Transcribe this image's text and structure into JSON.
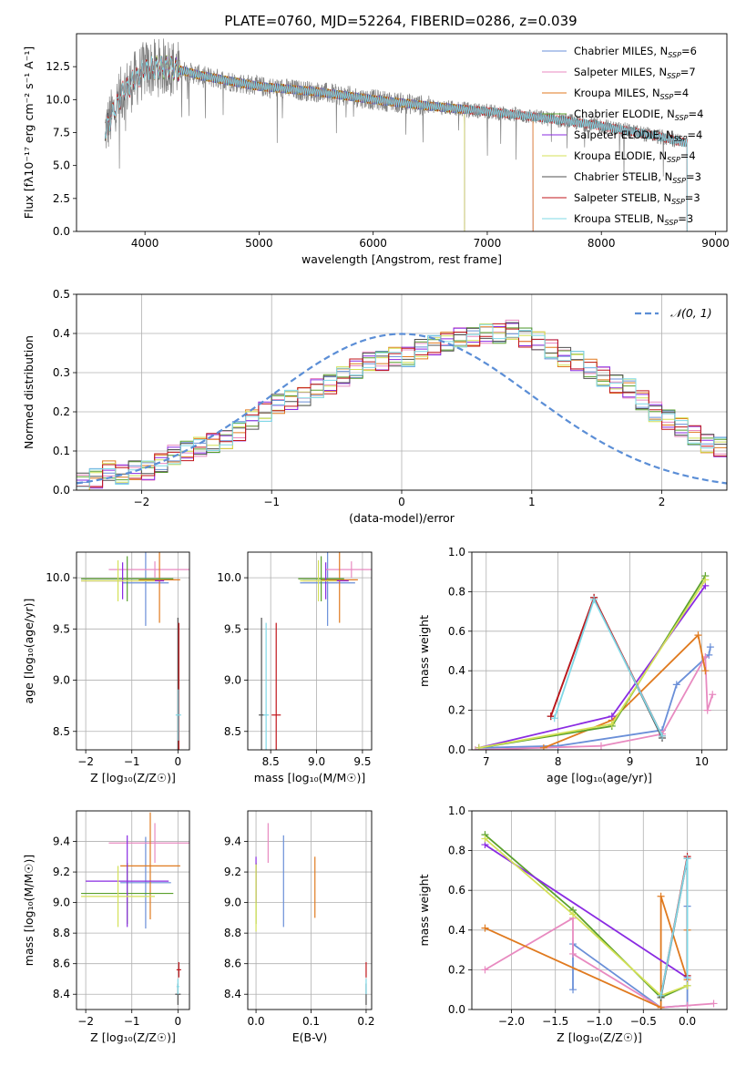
{
  "figure": {
    "title": "PLATE=0760, MJD=52264, FIBERID=0286, z=0.039"
  },
  "models": [
    {
      "name": "Chabrier MILES",
      "nssp": "6",
      "color": "#6a8fd8"
    },
    {
      "name": "Salpeter MILES",
      "nssp": "7",
      "color": "#e88ac0"
    },
    {
      "name": "Kroupa MILES",
      "nssp": "4",
      "color": "#e07a1f"
    },
    {
      "name": "Chabrier ELODIE",
      "nssp": "4",
      "color": "#5aa02c"
    },
    {
      "name": "Salpeter ELODIE",
      "nssp": "4",
      "color": "#8a2be2"
    },
    {
      "name": "Kroupa ELODIE",
      "nssp": "4",
      "color": "#d4e157"
    },
    {
      "name": "Chabrier STELIB",
      "nssp": "3",
      "color": "#505050"
    },
    {
      "name": "Salpeter STELIB",
      "nssp": "3",
      "color": "#c0161b"
    },
    {
      "name": "Kroupa STELIB",
      "nssp": "3",
      "color": "#7fd8e6"
    }
  ],
  "chart_data": [
    {
      "id": "spectrum",
      "type": "line",
      "xlabel": "wavelength [Angstrom, rest frame]",
      "ylabel": "Flux [fλ10⁻¹⁷ erg cm⁻² s⁻¹ A⁻¹]",
      "xlim": [
        3400,
        9100
      ],
      "ylim": [
        0,
        15
      ],
      "xticks": [
        4000,
        5000,
        6000,
        7000,
        8000,
        9000
      ],
      "yticks": [
        0.0,
        2.5,
        5.0,
        7.5,
        10.0,
        12.5
      ],
      "data_series_color": "#808080",
      "data_wavelength_range": [
        3650,
        8700
      ],
      "model_continuum": [
        {
          "x": 3650,
          "y": 7.6
        },
        {
          "x": 3800,
          "y": 10.5
        },
        {
          "x": 4000,
          "y": 12.3
        },
        {
          "x": 4200,
          "y": 12.5
        },
        {
          "x": 4500,
          "y": 11.8
        },
        {
          "x": 5000,
          "y": 11.0
        },
        {
          "x": 5500,
          "y": 10.6
        },
        {
          "x": 6000,
          "y": 10.0
        },
        {
          "x": 6500,
          "y": 9.5
        },
        {
          "x": 7000,
          "y": 9.1
        },
        {
          "x": 7500,
          "y": 8.6
        },
        {
          "x": 8000,
          "y": 8.0
        },
        {
          "x": 8500,
          "y": 7.2
        },
        {
          "x": 8750,
          "y": 6.7
        }
      ],
      "model_ranges": {
        "Chabrier MILES": [
          3650,
          7400
        ],
        "Salpeter MILES": [
          3650,
          7400
        ],
        "Kroupa MILES": [
          3650,
          7400
        ],
        "Chabrier ELODIE": [
          4100,
          6800
        ],
        "Salpeter ELODIE": [
          4100,
          6800
        ],
        "Kroupa ELODIE": [
          4100,
          6800
        ],
        "Chabrier STELIB": [
          3650,
          8750
        ],
        "Salpeter STELIB": [
          3650,
          8750
        ],
        "Kroupa STELIB": [
          3650,
          8750
        ]
      },
      "legend_loc": "upper right"
    },
    {
      "id": "residuals",
      "type": "step",
      "xlabel": "(data-model)/error",
      "ylabel": "Normed distribution",
      "xlim": [
        -2.5,
        2.5
      ],
      "ylim": [
        0,
        0.5
      ],
      "xticks": [
        -2,
        -1,
        0,
        1,
        2
      ],
      "yticks": [
        0.0,
        0.1,
        0.2,
        0.3,
        0.4,
        0.5
      ],
      "legend_label": "𝒩(0, 1)",
      "legend_loc": "upper right",
      "gaussian": {
        "mean": 0,
        "sigma": 1,
        "color": "#5b8ed6"
      },
      "bin_width": 0.1,
      "bin_start": -2.5,
      "hist_base": [
        0.02,
        0.03,
        0.05,
        0.04,
        0.05,
        0.05,
        0.07,
        0.09,
        0.1,
        0.11,
        0.12,
        0.13,
        0.15,
        0.18,
        0.2,
        0.22,
        0.23,
        0.24,
        0.26,
        0.27,
        0.29,
        0.31,
        0.33,
        0.33,
        0.34,
        0.34,
        0.36,
        0.37,
        0.38,
        0.39,
        0.39,
        0.4,
        0.4,
        0.41,
        0.39,
        0.38,
        0.36,
        0.34,
        0.33,
        0.31,
        0.29,
        0.27,
        0.26,
        0.23,
        0.2,
        0.18,
        0.16,
        0.14,
        0.12,
        0.11
      ]
    },
    {
      "id": "age_vs_Z",
      "type": "errorbar",
      "xlabel": "Z [log₁₀(Z/Z☉)]",
      "ylabel": "age  [log₁₀(age/yr)]",
      "xlim": [
        -2.2,
        0.25
      ],
      "ylim": [
        8.32,
        10.25
      ],
      "xticks": [
        -2,
        -1,
        0
      ],
      "yticks": [
        8.5,
        9.0,
        9.5,
        10.0
      ],
      "points": [
        {
          "model": "Chabrier MILES",
          "x": -0.7,
          "xerr": 0.5,
          "y": 9.95,
          "yerr": 0.42
        },
        {
          "model": "Salpeter MILES",
          "x": -0.5,
          "xerr": 1.0,
          "y": 10.08,
          "yerr": 0.08
        },
        {
          "model": "Kroupa MILES",
          "x": -0.4,
          "xerr": 0.45,
          "y": 9.98,
          "yerr": 0.42
        },
        {
          "model": "Chabrier ELODIE",
          "x": -1.1,
          "xerr": 1.0,
          "y": 9.99,
          "yerr": 0.22
        },
        {
          "model": "Salpeter ELODIE",
          "x": -1.2,
          "xerr": 0.9,
          "y": 9.97,
          "yerr": 0.18
        },
        {
          "model": "Kroupa ELODIE",
          "x": -1.3,
          "xerr": 0.8,
          "y": 9.97,
          "yerr": 0.2
        },
        {
          "model": "Chabrier STELIB",
          "x": 0.0,
          "xerr": 0.01,
          "y": 8.66,
          "yerr": 0.95
        },
        {
          "model": "Salpeter STELIB",
          "x": 0.02,
          "xerr": 0.01,
          "y": 8.66,
          "yerr": 0.9
        },
        {
          "model": "Kroupa STELIB",
          "x": 0.01,
          "xerr": 0.06,
          "y": 8.66,
          "yerr": 0.25
        }
      ]
    },
    {
      "id": "age_vs_mass",
      "type": "errorbar",
      "xlabel": "mass [log₁₀(M/M☉)]",
      "ylabel": "",
      "xlim": [
        8.25,
        9.6
      ],
      "ylim": [
        8.32,
        10.25
      ],
      "xticks": [
        8.5,
        9.0,
        9.5
      ],
      "yticks": [
        8.5,
        9.0,
        9.5,
        10.0
      ],
      "points": [
        {
          "model": "Chabrier MILES",
          "x": 9.12,
          "xerr": 0.3,
          "y": 9.95,
          "yerr": 0.42
        },
        {
          "model": "Salpeter MILES",
          "x": 9.38,
          "xerr": 0.28,
          "y": 10.08,
          "yerr": 0.08
        },
        {
          "model": "Kroupa MILES",
          "x": 9.25,
          "xerr": 0.2,
          "y": 9.98,
          "yerr": 0.42
        },
        {
          "model": "Chabrier ELODIE",
          "x": 9.05,
          "xerr": 0.25,
          "y": 9.99,
          "yerr": 0.22
        },
        {
          "model": "Salpeter ELODIE",
          "x": 9.1,
          "xerr": 0.25,
          "y": 9.97,
          "yerr": 0.18
        },
        {
          "model": "Kroupa ELODIE",
          "x": 9.02,
          "xerr": 0.2,
          "y": 9.97,
          "yerr": 0.2
        },
        {
          "model": "Chabrier STELIB",
          "x": 8.4,
          "xerr": 0.03,
          "y": 8.66,
          "yerr": 0.95
        },
        {
          "model": "Salpeter STELIB",
          "x": 8.56,
          "xerr": 0.05,
          "y": 8.66,
          "yerr": 0.9
        },
        {
          "model": "Kroupa STELIB",
          "x": 8.45,
          "xerr": 0.03,
          "y": 8.66,
          "yerr": 0.9
        }
      ]
    },
    {
      "id": "weight_vs_age",
      "type": "line",
      "xlabel": "age  [log₁₀(age/yr)]",
      "ylabel": "mass weight",
      "xlim": [
        6.8,
        10.35
      ],
      "ylim": [
        0,
        1.0
      ],
      "xticks": [
        7,
        8,
        9,
        10
      ],
      "yticks": [
        0.0,
        0.2,
        0.4,
        0.6,
        0.8,
        1.0
      ],
      "series": [
        {
          "model": "Chabrier MILES",
          "x": [
            6.9,
            8.0,
            9.45,
            9.65,
            10.1,
            10.12
          ],
          "y": [
            0.01,
            0.02,
            0.1,
            0.33,
            0.48,
            0.52
          ]
        },
        {
          "model": "Salpeter MILES",
          "x": [
            6.85,
            8.6,
            9.45,
            10.05,
            10.08,
            10.15
          ],
          "y": [
            0.0,
            0.02,
            0.08,
            0.47,
            0.2,
            0.28
          ]
        },
        {
          "model": "Kroupa MILES",
          "x": [
            7.8,
            8.75,
            9.95,
            10.05
          ],
          "y": [
            0.01,
            0.15,
            0.58,
            0.4
          ]
        },
        {
          "model": "Chabrier ELODIE",
          "x": [
            6.9,
            8.75,
            10.05
          ],
          "y": [
            0.01,
            0.12,
            0.88
          ]
        },
        {
          "model": "Salpeter ELODIE",
          "x": [
            6.9,
            8.75,
            10.05
          ],
          "y": [
            0.01,
            0.17,
            0.83
          ]
        },
        {
          "model": "Kroupa ELODIE",
          "x": [
            6.9,
            8.75,
            10.05
          ],
          "y": [
            0.01,
            0.13,
            0.86
          ]
        },
        {
          "model": "Chabrier STELIB",
          "x": [
            7.9,
            8.5,
            9.45
          ],
          "y": [
            0.17,
            0.77,
            0.06
          ]
        },
        {
          "model": "Salpeter STELIB",
          "x": [
            7.9,
            8.5,
            9.45
          ],
          "y": [
            0.17,
            0.77,
            0.07
          ]
        },
        {
          "model": "Kroupa STELIB",
          "x": [
            7.95,
            8.5,
            9.45
          ],
          "y": [
            0.16,
            0.76,
            0.07
          ]
        }
      ]
    },
    {
      "id": "mass_vs_Z",
      "type": "errorbar",
      "xlabel": "Z [log₁₀(Z/Z☉)]",
      "ylabel": "mass [log₁₀(M/M☉)]",
      "xlim": [
        -2.2,
        0.25
      ],
      "ylim": [
        8.3,
        9.6
      ],
      "xticks": [
        -2,
        -1,
        0
      ],
      "yticks": [
        8.4,
        8.6,
        8.8,
        9.0,
        9.2,
        9.4
      ],
      "points": [
        {
          "model": "Chabrier MILES",
          "x": -0.7,
          "xerr": 0.55,
          "y": 9.13,
          "yerr": 0.3
        },
        {
          "model": "Salpeter MILES",
          "x": -0.5,
          "xerr": 1.0,
          "y": 9.39,
          "yerr": 0.13
        },
        {
          "model": "Kroupa MILES",
          "x": -0.6,
          "xerr": 0.65,
          "y": 9.24,
          "yerr": 0.35
        },
        {
          "model": "Chabrier ELODIE",
          "x": -1.1,
          "xerr": 1.0,
          "y": 9.06,
          "yerr": 0.2
        },
        {
          "model": "Salpeter ELODIE",
          "x": -1.1,
          "xerr": 0.9,
          "y": 9.14,
          "yerr": 0.3
        },
        {
          "model": "Kroupa ELODIE",
          "x": -1.3,
          "xerr": 0.8,
          "y": 9.04,
          "yerr": 0.2
        },
        {
          "model": "Chabrier STELIB",
          "x": 0.0,
          "xerr": 0.06,
          "y": 8.4,
          "yerr": 0.07
        },
        {
          "model": "Salpeter STELIB",
          "x": 0.02,
          "xerr": 0.05,
          "y": 8.56,
          "yerr": 0.05
        },
        {
          "model": "Kroupa STELIB",
          "x": 0.0,
          "xerr": 0.03,
          "y": 8.45,
          "yerr": 0.05
        }
      ]
    },
    {
      "id": "mass_vs_EBV",
      "type": "errorbar",
      "xlabel": "E(B-V)",
      "ylabel": "",
      "xlim": [
        -0.015,
        0.21
      ],
      "ylim": [
        8.3,
        9.6
      ],
      "xticks": [
        0.0,
        0.1,
        0.2
      ],
      "yticks": [
        8.4,
        8.6,
        8.8,
        9.0,
        9.2,
        9.4
      ],
      "points": [
        {
          "model": "Chabrier MILES",
          "x": 0.05,
          "xerr": 0.0,
          "y": 9.14,
          "yerr": 0.3
        },
        {
          "model": "Salpeter MILES",
          "x": 0.022,
          "xerr": 0.0,
          "y": 9.39,
          "yerr": 0.13
        },
        {
          "model": "Kroupa MILES",
          "x": 0.107,
          "xerr": 0.0,
          "y": 9.1,
          "yerr": 0.2
        },
        {
          "model": "Chabrier ELODIE",
          "x": 0.0,
          "xerr": 0.0,
          "y": 9.06,
          "yerr": 0.2
        },
        {
          "model": "Salpeter ELODIE",
          "x": 0.0,
          "xerr": 0.0,
          "y": 9.15,
          "yerr": 0.15
        },
        {
          "model": "Kroupa ELODIE",
          "x": 0.0,
          "xerr": 0.0,
          "y": 9.03,
          "yerr": 0.22
        },
        {
          "model": "Chabrier STELIB",
          "x": 0.2,
          "xerr": 0.0,
          "y": 8.4,
          "yerr": 0.07
        },
        {
          "model": "Salpeter STELIB",
          "x": 0.2,
          "xerr": 0.0,
          "y": 8.56,
          "yerr": 0.05
        },
        {
          "model": "Kroupa STELIB",
          "x": 0.2,
          "xerr": 0.0,
          "y": 8.45,
          "yerr": 0.05
        }
      ]
    },
    {
      "id": "weight_vs_Z",
      "type": "line",
      "xlabel": "Z [log₁₀(Z/Z☉)]",
      "ylabel": "mass weight",
      "xlim": [
        -2.45,
        0.45
      ],
      "ylim": [
        0,
        1.0
      ],
      "xticks": [
        -2.0,
        -1.5,
        -1.0,
        -0.5,
        0.0
      ],
      "yticks": [
        0.0,
        0.2,
        0.4,
        0.6,
        0.8,
        1.0
      ],
      "series": [
        {
          "model": "Chabrier MILES",
          "x": [
            -1.3,
            -1.3,
            -0.3,
            0.0,
            0.0
          ],
          "y": [
            0.1,
            0.33,
            0.01,
            0.02,
            0.52
          ]
        },
        {
          "model": "Salpeter MILES",
          "x": [
            -2.3,
            -1.3,
            -1.3,
            -0.3,
            0.0,
            0.3
          ],
          "y": [
            0.2,
            0.46,
            0.28,
            0.01,
            0.02,
            0.03
          ]
        },
        {
          "model": "Kroupa MILES",
          "x": [
            -2.3,
            -0.3,
            -0.3,
            0.0,
            0.0
          ],
          "y": [
            0.41,
            0.01,
            0.57,
            0.15,
            0.4
          ]
        },
        {
          "model": "Chabrier ELODIE",
          "x": [
            -2.3,
            -1.3,
            -0.3,
            0.0
          ],
          "y": [
            0.88,
            0.5,
            0.06,
            0.12
          ]
        },
        {
          "model": "Salpeter ELODIE",
          "x": [
            -2.3,
            0.0
          ],
          "y": [
            0.83,
            0.16
          ]
        },
        {
          "model": "Kroupa ELODIE",
          "x": [
            -2.3,
            -1.3,
            -0.3,
            0.0
          ],
          "y": [
            0.86,
            0.48,
            0.07,
            0.12
          ]
        },
        {
          "model": "Chabrier STELIB",
          "x": [
            -0.3,
            0.0,
            0.0
          ],
          "y": [
            0.06,
            0.76,
            0.17
          ]
        },
        {
          "model": "Salpeter STELIB",
          "x": [
            -0.3,
            0.0,
            0.0
          ],
          "y": [
            0.07,
            0.77,
            0.17
          ]
        },
        {
          "model": "Kroupa STELIB",
          "x": [
            -0.3,
            0.0,
            0.0
          ],
          "y": [
            0.07,
            0.76,
            0.16
          ]
        }
      ]
    }
  ]
}
